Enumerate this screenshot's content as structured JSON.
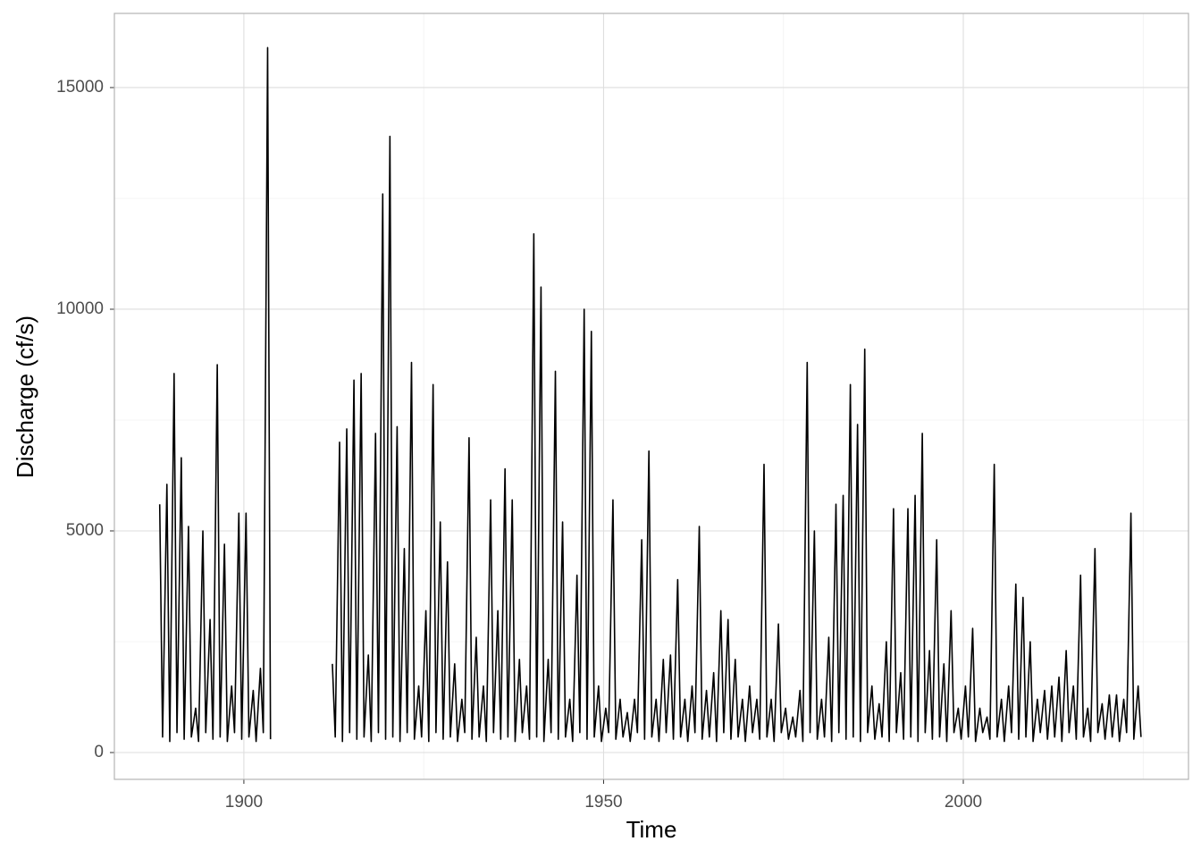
{
  "chart_data": {
    "type": "line",
    "x_label": "Time",
    "y_label": "Discharge (cf/s)",
    "xlim": [
      1882,
      2031.3
    ],
    "ylim": [
      -605,
      16673
    ],
    "xticks": [
      1900,
      1950,
      2000
    ],
    "yticks": [
      0,
      5000,
      10000,
      15000
    ],
    "x_minor_grid": [
      1925,
      1975,
      2025
    ],
    "y_minor_grid": [
      2500,
      7500,
      12500
    ],
    "grid": true,
    "color": "#000000",
    "x": [
      1888.3,
      1888.7,
      1889.3,
      1889.7,
      1890.3,
      1890.7,
      1891.3,
      1891.7,
      1892.3,
      1892.7,
      1893.3,
      1893.7,
      1894.3,
      1894.7,
      1895.3,
      1895.7,
      1896.3,
      1896.7,
      1897.3,
      1897.7,
      1898.3,
      1898.7,
      1899.3,
      1899.7,
      1900.3,
      1900.7,
      1901.3,
      1901.7,
      1902.3,
      1902.7,
      1903.3,
      1903.7,
      1908,
      1912.3,
      1912.7,
      1913.3,
      1913.7,
      1914.3,
      1914.7,
      1915.3,
      1915.7,
      1916.3,
      1916.7,
      1917.3,
      1917.7,
      1918.3,
      1918.7,
      1919.3,
      1919.7,
      1920.3,
      1920.7,
      1921.3,
      1921.7,
      1922.3,
      1922.7,
      1923.3,
      1923.7,
      1924.3,
      1924.7,
      1925.3,
      1925.7,
      1926.3,
      1926.7,
      1927.3,
      1927.7,
      1928.3,
      1928.7,
      1929.3,
      1929.7,
      1930.3,
      1930.7,
      1931.3,
      1931.7,
      1932.3,
      1932.7,
      1933.3,
      1933.7,
      1934.3,
      1934.7,
      1935.3,
      1935.7,
      1936.3,
      1936.7,
      1937.3,
      1937.7,
      1938.3,
      1938.7,
      1939.3,
      1939.7,
      1940.3,
      1940.7,
      1941.3,
      1941.7,
      1942.3,
      1942.7,
      1943.3,
      1943.7,
      1944.3,
      1944.7,
      1945.3,
      1945.7,
      1946.3,
      1946.7,
      1947.3,
      1947.7,
      1948.3,
      1948.7,
      1949.3,
      1949.7,
      1950.3,
      1950.7,
      1951.3,
      1951.7,
      1952.3,
      1952.7,
      1953.3,
      1953.7,
      1954.3,
      1954.7,
      1955.3,
      1955.7,
      1956.3,
      1956.7,
      1957.3,
      1957.7,
      1958.3,
      1958.7,
      1959.3,
      1959.7,
      1960.3,
      1960.7,
      1961.3,
      1961.7,
      1962.3,
      1962.7,
      1963.3,
      1963.7,
      1964.3,
      1964.7,
      1965.3,
      1965.7,
      1966.3,
      1966.7,
      1967.3,
      1967.7,
      1968.3,
      1968.7,
      1969.3,
      1969.7,
      1970.3,
      1970.7,
      1971.3,
      1971.7,
      1972.3,
      1972.7,
      1973.3,
      1973.7,
      1974.3,
      1974.7,
      1975.3,
      1975.7,
      1976.3,
      1976.7,
      1977.3,
      1977.7,
      1978.3,
      1978.7,
      1979.3,
      1979.7,
      1980.3,
      1980.7,
      1981.3,
      1981.7,
      1982.3,
      1982.7,
      1983.3,
      1983.7,
      1984.3,
      1984.7,
      1985.3,
      1985.7,
      1986.3,
      1986.7,
      1987.3,
      1987.7,
      1988.3,
      1988.7,
      1989.3,
      1989.7,
      1990.3,
      1990.7,
      1991.3,
      1991.7,
      1992.3,
      1992.7,
      1993.3,
      1993.7,
      1994.3,
      1994.7,
      1995.3,
      1995.7,
      1996.3,
      1996.7,
      1997.3,
      1997.7,
      1998.3,
      1998.7,
      1999.3,
      1999.7,
      2000.3,
      2000.7,
      2001.3,
      2001.7,
      2002.3,
      2002.7,
      2003.3,
      2003.7,
      2004.3,
      2004.7,
      2005.3,
      2005.7,
      2006.3,
      2006.7,
      2007.3,
      2007.7,
      2008.3,
      2008.7,
      2009.3,
      2009.7,
      2010.3,
      2010.7,
      2011.3,
      2011.7,
      2012.3,
      2012.7,
      2013.3,
      2013.7,
      2014.3,
      2014.7,
      2015.3,
      2015.7,
      2016.3,
      2016.7,
      2017.3,
      2017.7,
      2018.3,
      2018.7,
      2019.3,
      2019.7,
      2020.3,
      2020.7,
      2021.3,
      2021.7,
      2022.3,
      2022.7,
      2023.3,
      2023.7,
      2024.3,
      2024.7
    ],
    "values": [
      5600,
      350,
      6050,
      250,
      8550,
      450,
      6650,
      300,
      5100,
      350,
      1000,
      250,
      5000,
      450,
      3000,
      300,
      8750,
      350,
      4700,
      250,
      1500,
      450,
      5400,
      300,
      5400,
      350,
      1400,
      250,
      1900,
      450,
      15900,
      300,
      null,
      2000,
      350,
      7000,
      250,
      7300,
      450,
      8400,
      300,
      8550,
      350,
      2200,
      250,
      7200,
      450,
      12600,
      300,
      13900,
      350,
      7350,
      250,
      4600,
      450,
      8800,
      300,
      1500,
      350,
      3200,
      250,
      8300,
      450,
      5200,
      300,
      4300,
      350,
      2000,
      250,
      1200,
      450,
      7100,
      300,
      2600,
      350,
      1500,
      250,
      5700,
      450,
      3200,
      300,
      6400,
      350,
      5700,
      250,
      2100,
      450,
      1500,
      300,
      11700,
      350,
      10500,
      250,
      2100,
      450,
      8600,
      300,
      5200,
      350,
      1200,
      250,
      4000,
      450,
      10000,
      300,
      9500,
      350,
      1500,
      250,
      1000,
      450,
      5700,
      300,
      1200,
      350,
      900,
      250,
      1200,
      450,
      4800,
      300,
      6800,
      350,
      1200,
      250,
      2100,
      450,
      2200,
      300,
      3900,
      350,
      1200,
      250,
      1500,
      450,
      5100,
      300,
      1400,
      350,
      1800,
      250,
      3200,
      450,
      3000,
      300,
      2100,
      350,
      1200,
      250,
      1500,
      450,
      1200,
      300,
      6500,
      350,
      1200,
      250,
      2900,
      450,
      1000,
      300,
      800,
      350,
      1400,
      250,
      8800,
      450,
      5000,
      300,
      1200,
      350,
      2600,
      250,
      5600,
      450,
      5800,
      300,
      8300,
      350,
      7400,
      250,
      9100,
      450,
      1500,
      300,
      1100,
      350,
      2500,
      250,
      5500,
      450,
      1800,
      300,
      5500,
      350,
      5800,
      250,
      7200,
      450,
      2300,
      300,
      4800,
      350,
      2000,
      250,
      3200,
      450,
      1000,
      300,
      1500,
      350,
      2800,
      250,
      1000,
      450,
      800,
      300,
      6500,
      350,
      1200,
      250,
      1500,
      450,
      3800,
      300,
      3500,
      350,
      2500,
      250,
      1200,
      450,
      1400,
      300,
      1500,
      350,
      1700,
      250,
      2300,
      450,
      1500,
      300,
      4000,
      350,
      1000,
      250,
      4600,
      450,
      1100,
      300,
      1300,
      350,
      1300,
      250,
      1200,
      450,
      5400,
      300,
      1500,
      350
    ]
  }
}
